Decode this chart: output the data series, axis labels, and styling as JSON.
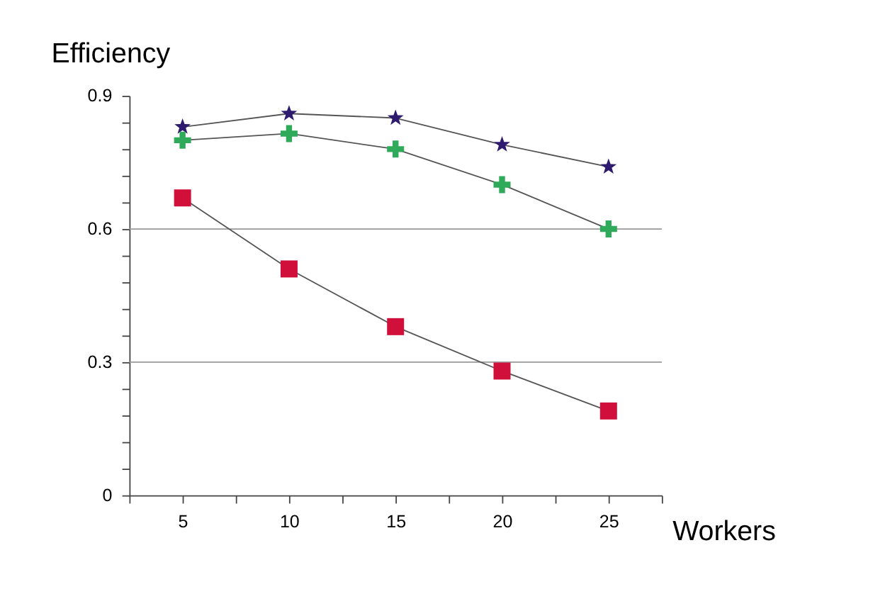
{
  "chart_data": {
    "type": "line",
    "xlabel": "Workers",
    "ylabel": "Efficiency",
    "x": [
      5,
      10,
      15,
      20,
      25
    ],
    "series": [
      {
        "color": "#2e1a6e",
        "marker": "star",
        "values": [
          0.83,
          0.86,
          0.85,
          0.79,
          0.74
        ]
      },
      {
        "color": "#2eaa5a",
        "marker": "cross",
        "values": [
          0.8,
          0.815,
          0.78,
          0.7,
          0.6
        ]
      },
      {
        "color": "#d0103a",
        "marker": "square",
        "values": [
          0.67,
          0.51,
          0.38,
          0.28,
          0.19
        ]
      }
    ],
    "xlim": [
      2.5,
      27.5
    ],
    "xticks": [
      {
        "value": 2.5,
        "label": null
      },
      5,
      {
        "value": 7.5,
        "label": null
      },
      10,
      {
        "value": 12.5,
        "label": null
      },
      15,
      {
        "value": 17.5,
        "label": null
      },
      20,
      {
        "value": 22.5,
        "label": null
      },
      25,
      {
        "value": 27.5,
        "label": null
      }
    ],
    "ylim": [
      0,
      0.9
    ],
    "yticks": [
      0,
      {
        "value": 0.06,
        "label": null
      },
      {
        "value": 0.12,
        "label": null
      },
      {
        "value": 0.18,
        "label": null
      },
      {
        "value": 0.24,
        "label": null
      },
      0.3,
      {
        "value": 0.36,
        "label": null
      },
      {
        "value": 0.42,
        "label": null
      },
      {
        "value": 0.48,
        "label": null
      },
      {
        "value": 0.54,
        "label": null
      },
      0.6,
      {
        "value": 0.66,
        "label": null
      },
      {
        "value": 0.72,
        "label": null
      },
      {
        "value": 0.78,
        "label": null
      },
      {
        "value": 0.84,
        "label": null
      },
      0.9
    ],
    "ref_lines": [
      {
        "axis": "y",
        "value": 0.3,
        "color": "#999999"
      },
      {
        "axis": "y",
        "value": 0.6,
        "color": "#999999"
      }
    ],
    "grid": false,
    "legend": false,
    "line_style": "solid"
  }
}
